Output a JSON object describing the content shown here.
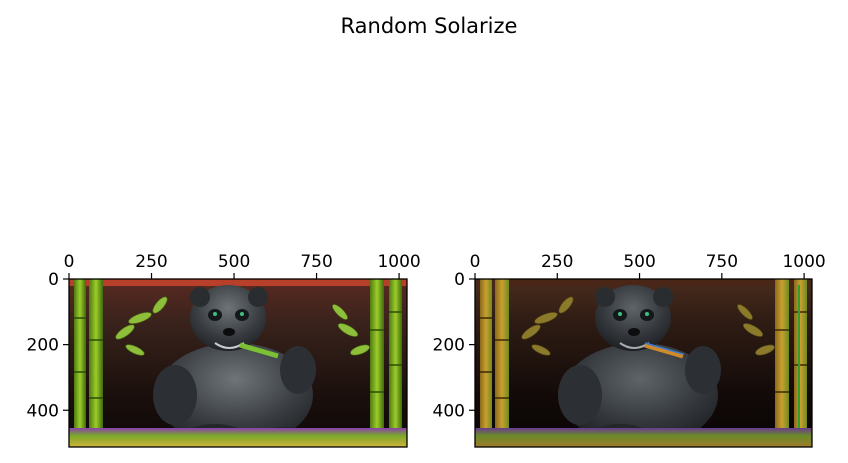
{
  "figure": {
    "suptitle": "Random Solarize"
  },
  "colors": {
    "frame": "#000000",
    "background": "#ffffff"
  },
  "chart_data": [
    {
      "type": "image",
      "title": "",
      "image_content": "original photo: cartoon panda eating bamboo in front of bamboo stalks, dark background, grass at bottom",
      "xlim": [
        0,
        1024
      ],
      "ylim": [
        512,
        0
      ],
      "x_ticks": [
        0,
        250,
        500,
        750,
        1000
      ],
      "y_ticks": [
        0,
        200,
        400
      ],
      "x_axis_position": "top"
    },
    {
      "type": "image",
      "title": "",
      "image_content": "solarized version of the same panda photo (bright regions inverted)",
      "xlim": [
        0,
        1024
      ],
      "ylim": [
        512,
        0
      ],
      "x_ticks": [
        0,
        250,
        500,
        750,
        1000
      ],
      "y_ticks": [
        0,
        200,
        400
      ],
      "x_axis_position": "top"
    }
  ]
}
